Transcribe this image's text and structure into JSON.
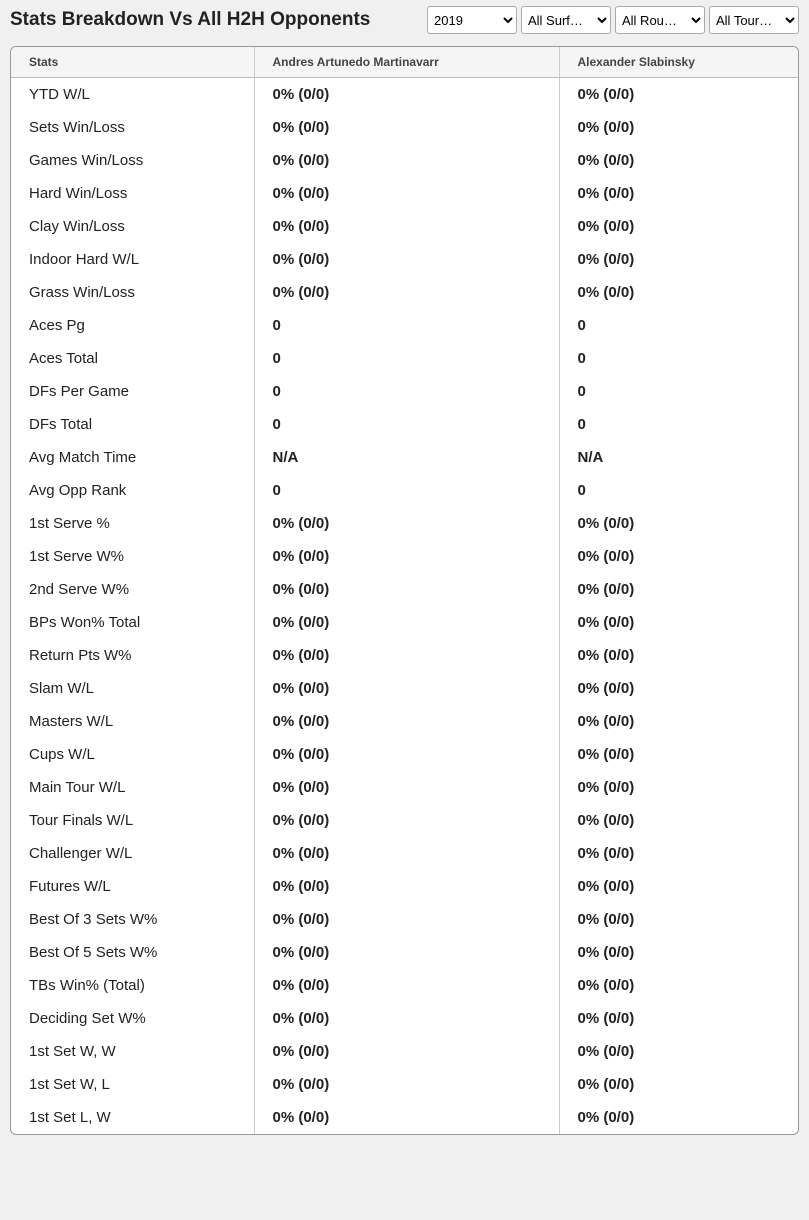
{
  "header": {
    "title": "Stats Breakdown Vs All H2H Opponents"
  },
  "filters": {
    "year": {
      "selected": "2019"
    },
    "surface": {
      "selected": "All Surf…"
    },
    "round": {
      "selected": "All Rou…"
    },
    "tour": {
      "selected": "All Tour…"
    }
  },
  "table": {
    "columns": {
      "stats": "Stats",
      "player1": "Andres Artunedo Martinavarr",
      "player2": "Alexander Slabinsky"
    },
    "rows": [
      {
        "label": "YTD W/L",
        "p1": "0% (0/0)",
        "p2": "0% (0/0)"
      },
      {
        "label": "Sets Win/Loss",
        "p1": "0% (0/0)",
        "p2": "0% (0/0)"
      },
      {
        "label": "Games Win/Loss",
        "p1": "0% (0/0)",
        "p2": "0% (0/0)"
      },
      {
        "label": "Hard Win/Loss",
        "p1": "0% (0/0)",
        "p2": "0% (0/0)"
      },
      {
        "label": "Clay Win/Loss",
        "p1": "0% (0/0)",
        "p2": "0% (0/0)"
      },
      {
        "label": "Indoor Hard W/L",
        "p1": "0% (0/0)",
        "p2": "0% (0/0)"
      },
      {
        "label": "Grass Win/Loss",
        "p1": "0% (0/0)",
        "p2": "0% (0/0)"
      },
      {
        "label": "Aces Pg",
        "p1": "0",
        "p2": "0"
      },
      {
        "label": "Aces Total",
        "p1": "0",
        "p2": "0"
      },
      {
        "label": "DFs Per Game",
        "p1": "0",
        "p2": "0"
      },
      {
        "label": "DFs Total",
        "p1": "0",
        "p2": "0"
      },
      {
        "label": "Avg Match Time",
        "p1": "N/A",
        "p2": "N/A"
      },
      {
        "label": "Avg Opp Rank",
        "p1": "0",
        "p2": "0"
      },
      {
        "label": "1st Serve %",
        "p1": "0% (0/0)",
        "p2": "0% (0/0)"
      },
      {
        "label": "1st Serve W%",
        "p1": "0% (0/0)",
        "p2": "0% (0/0)"
      },
      {
        "label": "2nd Serve W%",
        "p1": "0% (0/0)",
        "p2": "0% (0/0)"
      },
      {
        "label": "BPs Won% Total",
        "p1": "0% (0/0)",
        "p2": "0% (0/0)"
      },
      {
        "label": "Return Pts W%",
        "p1": "0% (0/0)",
        "p2": "0% (0/0)"
      },
      {
        "label": "Slam W/L",
        "p1": "0% (0/0)",
        "p2": "0% (0/0)"
      },
      {
        "label": "Masters W/L",
        "p1": "0% (0/0)",
        "p2": "0% (0/0)"
      },
      {
        "label": "Cups W/L",
        "p1": "0% (0/0)",
        "p2": "0% (0/0)"
      },
      {
        "label": "Main Tour W/L",
        "p1": "0% (0/0)",
        "p2": "0% (0/0)"
      },
      {
        "label": "Tour Finals W/L",
        "p1": "0% (0/0)",
        "p2": "0% (0/0)"
      },
      {
        "label": "Challenger W/L",
        "p1": "0% (0/0)",
        "p2": "0% (0/0)"
      },
      {
        "label": "Futures W/L",
        "p1": "0% (0/0)",
        "p2": "0% (0/0)"
      },
      {
        "label": "Best Of 3 Sets W%",
        "p1": "0% (0/0)",
        "p2": "0% (0/0)"
      },
      {
        "label": "Best Of 5 Sets W%",
        "p1": "0% (0/0)",
        "p2": "0% (0/0)"
      },
      {
        "label": "TBs Win% (Total)",
        "p1": "0% (0/0)",
        "p2": "0% (0/0)"
      },
      {
        "label": "Deciding Set W%",
        "p1": "0% (0/0)",
        "p2": "0% (0/0)"
      },
      {
        "label": "1st Set W, W",
        "p1": "0% (0/0)",
        "p2": "0% (0/0)"
      },
      {
        "label": "1st Set W, L",
        "p1": "0% (0/0)",
        "p2": "0% (0/0)"
      },
      {
        "label": "1st Set L, W",
        "p1": "0% (0/0)",
        "p2": "0% (0/0)"
      }
    ]
  }
}
